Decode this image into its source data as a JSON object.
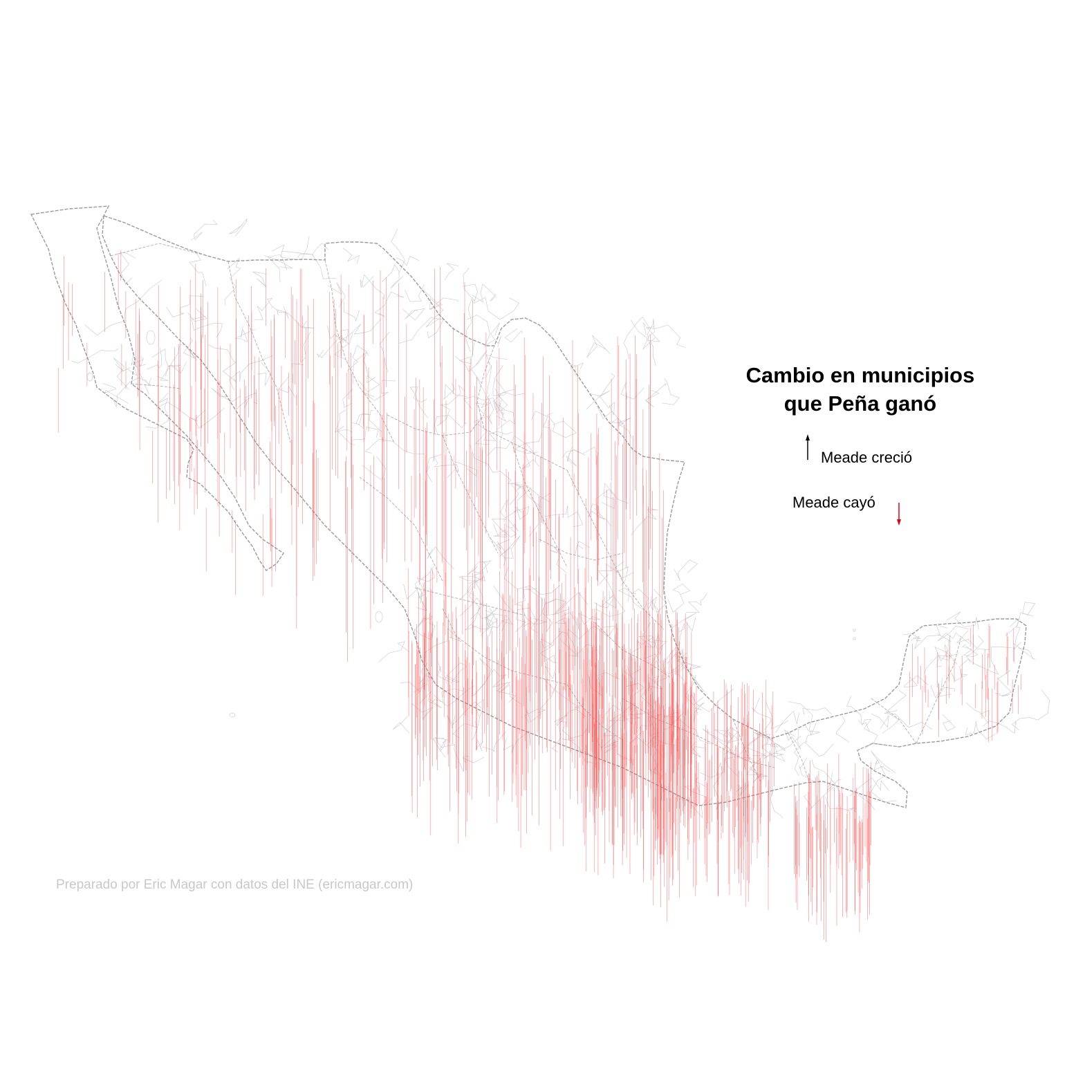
{
  "title": {
    "line1": "Cambio en municipios",
    "line2": "que Peña ganó"
  },
  "legend": {
    "up_label": "Meade creció",
    "down_label": "Meade cayó",
    "up_color": "#000000",
    "down_color": "#e8000b"
  },
  "credit": "Preparado por Eric Magar con datos del INE (ericmagar.com)",
  "colors": {
    "arrow_down": "#ff5a5a",
    "national_border": "#9a9a9a",
    "state_border": "#b4b4b4",
    "municipal_border": "#cfcfd4",
    "background": "#ffffff"
  }
}
